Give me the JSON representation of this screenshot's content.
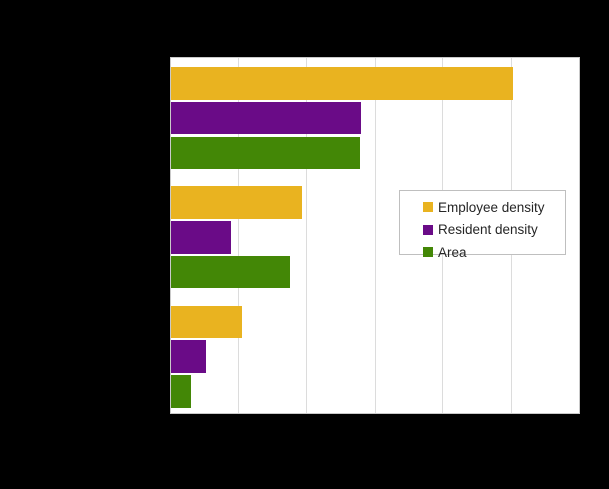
{
  "figure": {
    "background_color": "#000000",
    "plot_background_color": "#ffffff",
    "plot_border_color": "#c9c9c9",
    "gridline_color": "#dcdcdc",
    "title_text": "",
    "title_visible": false
  },
  "legend": {
    "items": [
      {
        "label": "Employee density",
        "color": "#e9b320"
      },
      {
        "label": "Resident density",
        "color": "#6a0b87"
      },
      {
        "label": "Area",
        "color": "#438706"
      }
    ]
  },
  "chart_data": {
    "type": "bar",
    "orientation": "horizontal",
    "title": "",
    "xlabel": "",
    "ylabel": "",
    "categories": [
      "",
      "",
      ""
    ],
    "category_labels_visible": false,
    "axis_tick_labels_visible": false,
    "units": "gridline units (axis tick labels not visible in image)",
    "xlim": [
      0,
      6
    ],
    "x_gridline_step": 1,
    "grid": true,
    "legend_position": "inside right",
    "series": [
      {
        "name": "Employee density",
        "color": "#e9b320",
        "values": [
          5.03,
          1.92,
          1.04
        ]
      },
      {
        "name": "Resident density",
        "color": "#6a0b87",
        "values": [
          2.79,
          0.88,
          0.52
        ]
      },
      {
        "name": "Area",
        "color": "#438706",
        "values": [
          2.78,
          1.75,
          0.29
        ]
      }
    ]
  }
}
